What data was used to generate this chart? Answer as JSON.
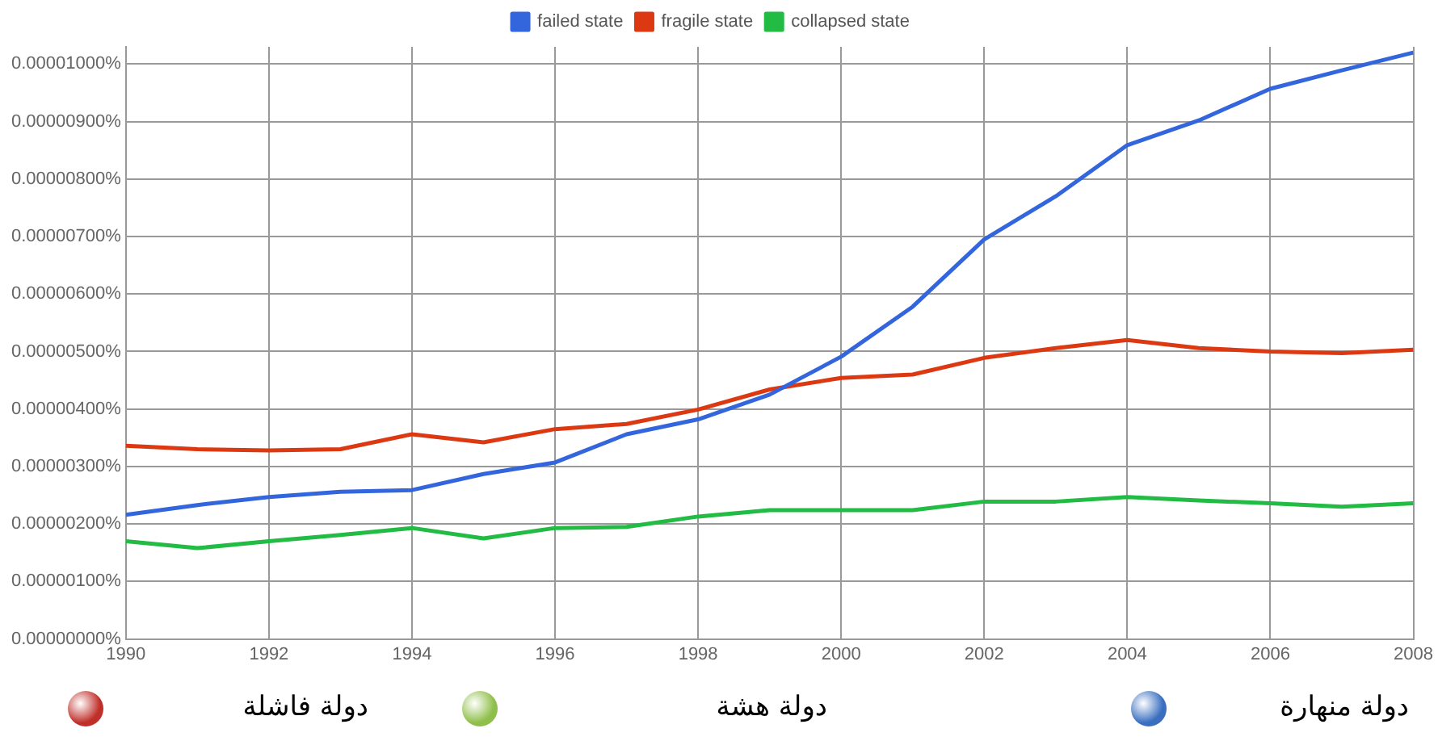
{
  "chart_data": {
    "type": "line",
    "x": [
      1990,
      1991,
      1992,
      1993,
      1994,
      1995,
      1996,
      1997,
      1998,
      1999,
      2000,
      2001,
      2002,
      2003,
      2004,
      2005,
      2006,
      2007,
      2008
    ],
    "series": [
      {
        "name": "failed state",
        "color": "#3366dd",
        "values": [
          2.16e-06,
          2.33e-06,
          2.47e-06,
          2.56e-06,
          2.59e-06,
          2.87e-06,
          3.07e-06,
          3.56e-06,
          3.82e-06,
          4.25e-06,
          4.91e-06,
          5.78e-06,
          6.95e-06,
          7.7e-06,
          8.59e-06,
          9.02e-06,
          9.57e-06,
          9.89e-06,
          1.02e-05
        ]
      },
      {
        "name": "fragile state",
        "color": "#dc3912",
        "values": [
          3.36e-06,
          3.3e-06,
          3.28e-06,
          3.3e-06,
          3.56e-06,
          3.42e-06,
          3.65e-06,
          3.74e-06,
          3.99e-06,
          4.34e-06,
          4.54e-06,
          4.6e-06,
          4.89e-06,
          5.06e-06,
          5.2e-06,
          5.06e-06,
          5e-06,
          4.97e-06,
          5.03e-06
        ]
      },
      {
        "name": "collapsed state",
        "color": "#22bb44",
        "values": [
          1.7e-06,
          1.58e-06,
          1.7e-06,
          1.81e-06,
          1.93e-06,
          1.75e-06,
          1.93e-06,
          1.95e-06,
          2.13e-06,
          2.24e-06,
          2.24e-06,
          2.24e-06,
          2.39e-06,
          2.39e-06,
          2.47e-06,
          2.41e-06,
          2.36e-06,
          2.3e-06,
          2.36e-06
        ]
      }
    ],
    "xlim": [
      1990,
      2008
    ],
    "xticks": [
      1990,
      1992,
      1994,
      1996,
      1998,
      2000,
      2002,
      2004,
      2006,
      2008
    ],
    "ylim": [
      0,
      1.03e-05
    ],
    "yticks": [
      {
        "value": 0,
        "label": "0.00000000%"
      },
      {
        "value": 1e-06,
        "label": "0.00000100%"
      },
      {
        "value": 2e-06,
        "label": "0.00000200%"
      },
      {
        "value": 3e-06,
        "label": "0.00000300%"
      },
      {
        "value": 4e-06,
        "label": "0.00000400%"
      },
      {
        "value": 5e-06,
        "label": "0.00000500%"
      },
      {
        "value": 6e-06,
        "label": "0.00000600%"
      },
      {
        "value": 7e-06,
        "label": "0.00000700%"
      },
      {
        "value": 8e-06,
        "label": "0.00000800%"
      },
      {
        "value": 9e-06,
        "label": "0.00000900%"
      },
      {
        "value": 1e-05,
        "label": "0.00001000%"
      }
    ],
    "grid": true,
    "legend": "top",
    "marker": "none",
    "line_style": "solid",
    "annotations": [
      "دولة فاشلة",
      "دولة هشة",
      "دولة منهارة"
    ]
  }
}
